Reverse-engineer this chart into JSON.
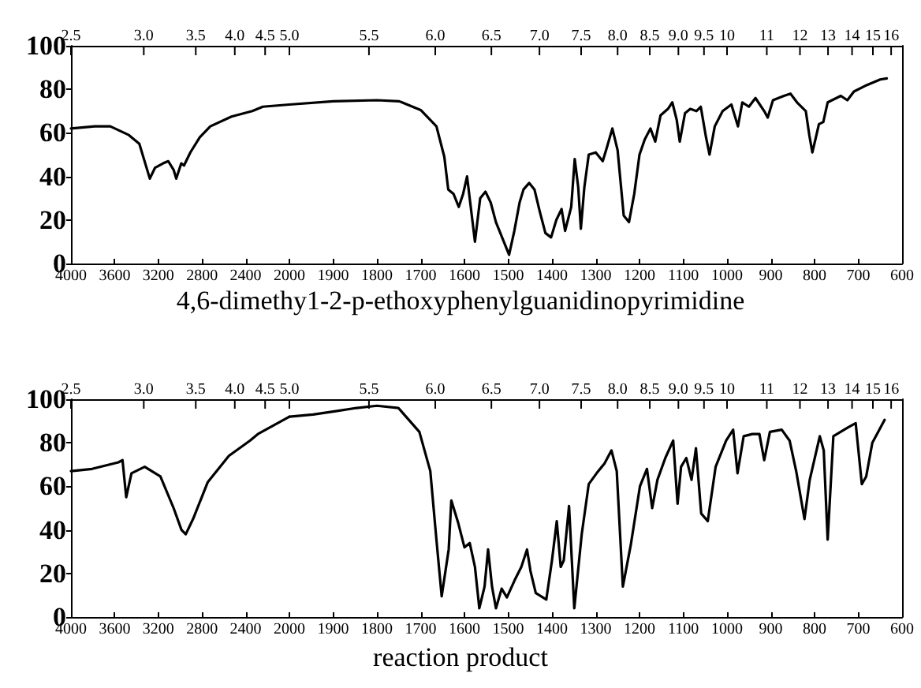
{
  "chart_data": [
    {
      "type": "line",
      "title": "4,6-dimethy1-2-p-ethoxyphenylguanidinopyrimidine",
      "xlim": [
        4000,
        2000
      ],
      "xticks": [
        4000,
        3600,
        3200,
        2800,
        2400,
        2000
      ],
      "annotations": [
        "2.5",
        "3.0",
        "3.5",
        "4.0",
        "4.5",
        "5.0"
      ],
      "ylim": [
        0,
        100
      ],
      "yticks": [
        0,
        20,
        40,
        60,
        80,
        100
      ],
      "x": [
        4000,
        3783,
        3640,
        3470,
        3374,
        3278,
        3230,
        3157,
        3109,
        3060,
        3036,
        2990,
        2965,
        2907,
        2820,
        2724,
        2530,
        2340,
        2243,
        2000
      ],
      "series": [
        {
          "color": "#000000",
          "values": [
            62,
            63,
            63,
            59,
            55,
            39,
            44,
            46,
            47,
            43,
            39,
            46,
            45,
            51,
            58,
            63,
            67.5,
            70,
            72,
            73
          ]
        }
      ]
    },
    {
      "type": "line",
      "tick_labels": "x",
      "xlim": [
        2000,
        600
      ],
      "xticks": [
        1900,
        1800,
        1700,
        1600,
        1500,
        1400,
        1300,
        1200,
        1100,
        1000,
        900,
        800,
        700,
        600
      ],
      "annotations": [
        "5.5",
        "6.0",
        "6.5",
        "7.0",
        "7.5",
        "8.0",
        "8.5",
        "9.0",
        "9.5",
        "10",
        "11",
        "12",
        "13",
        "14",
        "15",
        "16"
      ],
      "ylim": [
        0,
        100
      ],
      "yticks": [
        0,
        20,
        40,
        60,
        80,
        100
      ],
      "x": [
        2000,
        1900,
        1800,
        1749,
        1700,
        1664,
        1646,
        1637,
        1625,
        1613,
        1603,
        1594,
        1576,
        1564,
        1552,
        1540,
        1528,
        1510,
        1498,
        1486,
        1474,
        1465,
        1452,
        1440,
        1428,
        1415,
        1402,
        1390,
        1378,
        1370,
        1356,
        1348,
        1340,
        1334,
        1326,
        1316,
        1300,
        1284,
        1275,
        1262,
        1250,
        1236,
        1224,
        1212,
        1200,
        1188,
        1175,
        1164,
        1152,
        1135,
        1125,
        1115,
        1108,
        1096,
        1084,
        1070,
        1060,
        1048,
        1040,
        1028,
        1010,
        990,
        975,
        965,
        950,
        935,
        915,
        907,
        895,
        870,
        855,
        840,
        820,
        812,
        805,
        798,
        790,
        780,
        770,
        740,
        725,
        710,
        680,
        650,
        635
      ],
      "series": [
        {
          "color": "#000000",
          "values": [
            73,
            74.5,
            75,
            74.5,
            70.5,
            63,
            49,
            34,
            32,
            26,
            32,
            40,
            10,
            30,
            33,
            28,
            19,
            10,
            4,
            15,
            28,
            34,
            37,
            34,
            24,
            14,
            12,
            20,
            25,
            15,
            26,
            48,
            35,
            16,
            35,
            50,
            51,
            47,
            53,
            62,
            52,
            22,
            19,
            32,
            50,
            57,
            62,
            56,
            68,
            71,
            74,
            66,
            56,
            69,
            71,
            70,
            72,
            58,
            50,
            63,
            70,
            73,
            63,
            74,
            72,
            76,
            70,
            67,
            75,
            77,
            78,
            74,
            70,
            59,
            51,
            57,
            64,
            65,
            74,
            77,
            75,
            79,
            82,
            84.5,
            85
          ]
        }
      ]
    },
    {
      "type": "line",
      "xlim": [
        4000,
        2000
      ],
      "xticks": [
        4000,
        3600,
        3200,
        2800,
        2400,
        2000
      ],
      "annotations": [
        "2.5",
        "3.0",
        "3.5",
        "4.0",
        "4.5",
        "5.0"
      ],
      "ylim": [
        0,
        100
      ],
      "yticks": [
        0,
        20,
        40,
        60,
        80,
        100
      ],
      "x": [
        4000,
        3807,
        3566,
        3528,
        3494,
        3446,
        3325,
        3181,
        3060,
        2988,
        2949,
        2882,
        2747,
        2554,
        2361,
        2289,
        2000
      ],
      "series": [
        {
          "color": "#000000",
          "values": [
            67,
            68,
            71,
            72,
            55,
            66,
            69,
            64.5,
            50,
            40,
            38,
            45,
            62,
            74,
            81,
            84,
            92
          ]
        }
      ]
    },
    {
      "type": "line",
      "tick_labels": "x",
      "title": "reaction product",
      "xlim": [
        2000,
        600
      ],
      "xticks": [
        1900,
        1800,
        1700,
        1600,
        1500,
        1400,
        1300,
        1200,
        1100,
        1000,
        900,
        800,
        700,
        600
      ],
      "annotations": [
        "5.5",
        "6.0",
        "6.5",
        "7.0",
        "7.5",
        "8.0",
        "8.5",
        "9.0",
        "9.5",
        "10",
        "11",
        "12",
        "13",
        "14",
        "15",
        "16"
      ],
      "ylim": [
        0,
        100
      ],
      "yticks": [
        0,
        20,
        40,
        60,
        80,
        100
      ],
      "x": [
        2000,
        1946,
        1894,
        1846,
        1800,
        1751,
        1703,
        1678,
        1664,
        1652,
        1636,
        1630,
        1614,
        1600,
        1588,
        1576,
        1566,
        1554,
        1546,
        1537,
        1528,
        1515,
        1503,
        1485,
        1470,
        1457,
        1449,
        1437,
        1413,
        1400,
        1389,
        1380,
        1373,
        1361,
        1349,
        1332,
        1316,
        1298,
        1280,
        1264,
        1252,
        1238,
        1220,
        1199,
        1183,
        1171,
        1159,
        1141,
        1123,
        1113,
        1105,
        1093,
        1081,
        1071,
        1059,
        1044,
        1026,
        1002,
        986,
        976,
        962,
        942,
        926,
        915,
        902,
        875,
        857,
        842,
        823,
        811,
        788,
        779,
        770,
        757,
        724,
        706,
        692,
        682,
        668,
        640
      ],
      "series": [
        {
          "color": "#000000",
          "values": [
            92,
            93,
            94.5,
            96,
            97,
            96,
            85,
            67,
            35.5,
            9.5,
            31,
            53.5,
            43,
            32,
            34,
            23,
            4,
            14,
            31,
            14,
            4,
            13,
            9,
            17,
            23,
            31,
            21,
            11,
            8,
            26,
            44,
            23,
            26,
            51,
            4,
            38,
            61,
            66,
            70.5,
            76.5,
            67,
            14,
            33,
            60,
            68,
            50,
            63,
            73,
            81,
            52,
            69,
            73,
            63,
            77.5,
            47.5,
            44,
            69,
            81,
            86,
            66,
            83,
            84,
            84,
            72,
            85,
            86,
            81,
            67,
            45,
            63,
            83,
            76.5,
            35.5,
            83,
            87,
            89,
            61,
            64.5,
            80,
            90.5
          ]
        }
      ]
    }
  ]
}
